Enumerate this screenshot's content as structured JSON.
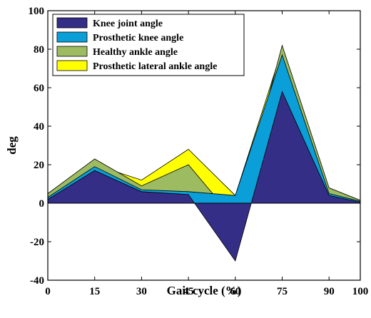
{
  "chart_data": {
    "type": "area",
    "title": "",
    "xlabel": "Gait cycle (%)",
    "ylabel": "deg",
    "x": [
      0,
      15,
      30,
      45,
      60,
      75,
      90,
      100
    ],
    "xlim": [
      0,
      100
    ],
    "ylim": [
      -40,
      100
    ],
    "xticks": [
      "0",
      "15",
      "30",
      "45",
      "60",
      "75",
      "90",
      "100"
    ],
    "yticks": [
      "-40",
      "-20",
      "0",
      "20",
      "40",
      "60",
      "80",
      "100"
    ],
    "grid": false,
    "legend_position": "top-left",
    "series": [
      {
        "name": "Prosthetic lateral ankle angle",
        "color": "#ffff00",
        "values": [
          4,
          20,
          12,
          28,
          4,
          80,
          7,
          1
        ]
      },
      {
        "name": "Healthy ankle angle",
        "color": "#9dbb61",
        "values": [
          5,
          23,
          9,
          20,
          -9,
          82,
          8,
          1.5
        ]
      },
      {
        "name": "Prosthetic knee angle",
        "color": "#0a9fd8",
        "values": [
          3,
          19,
          7,
          6,
          4,
          77,
          5,
          1
        ]
      },
      {
        "name": "Knee joint angle",
        "color": "#342e86",
        "values": [
          2,
          17,
          6,
          4.5,
          -30,
          58,
          4,
          0.5
        ]
      }
    ],
    "legend_order": [
      "Knee joint angle",
      "Prosthetic knee angle",
      "Healthy ankle angle",
      "Prosthetic lateral ankle angle"
    ]
  }
}
